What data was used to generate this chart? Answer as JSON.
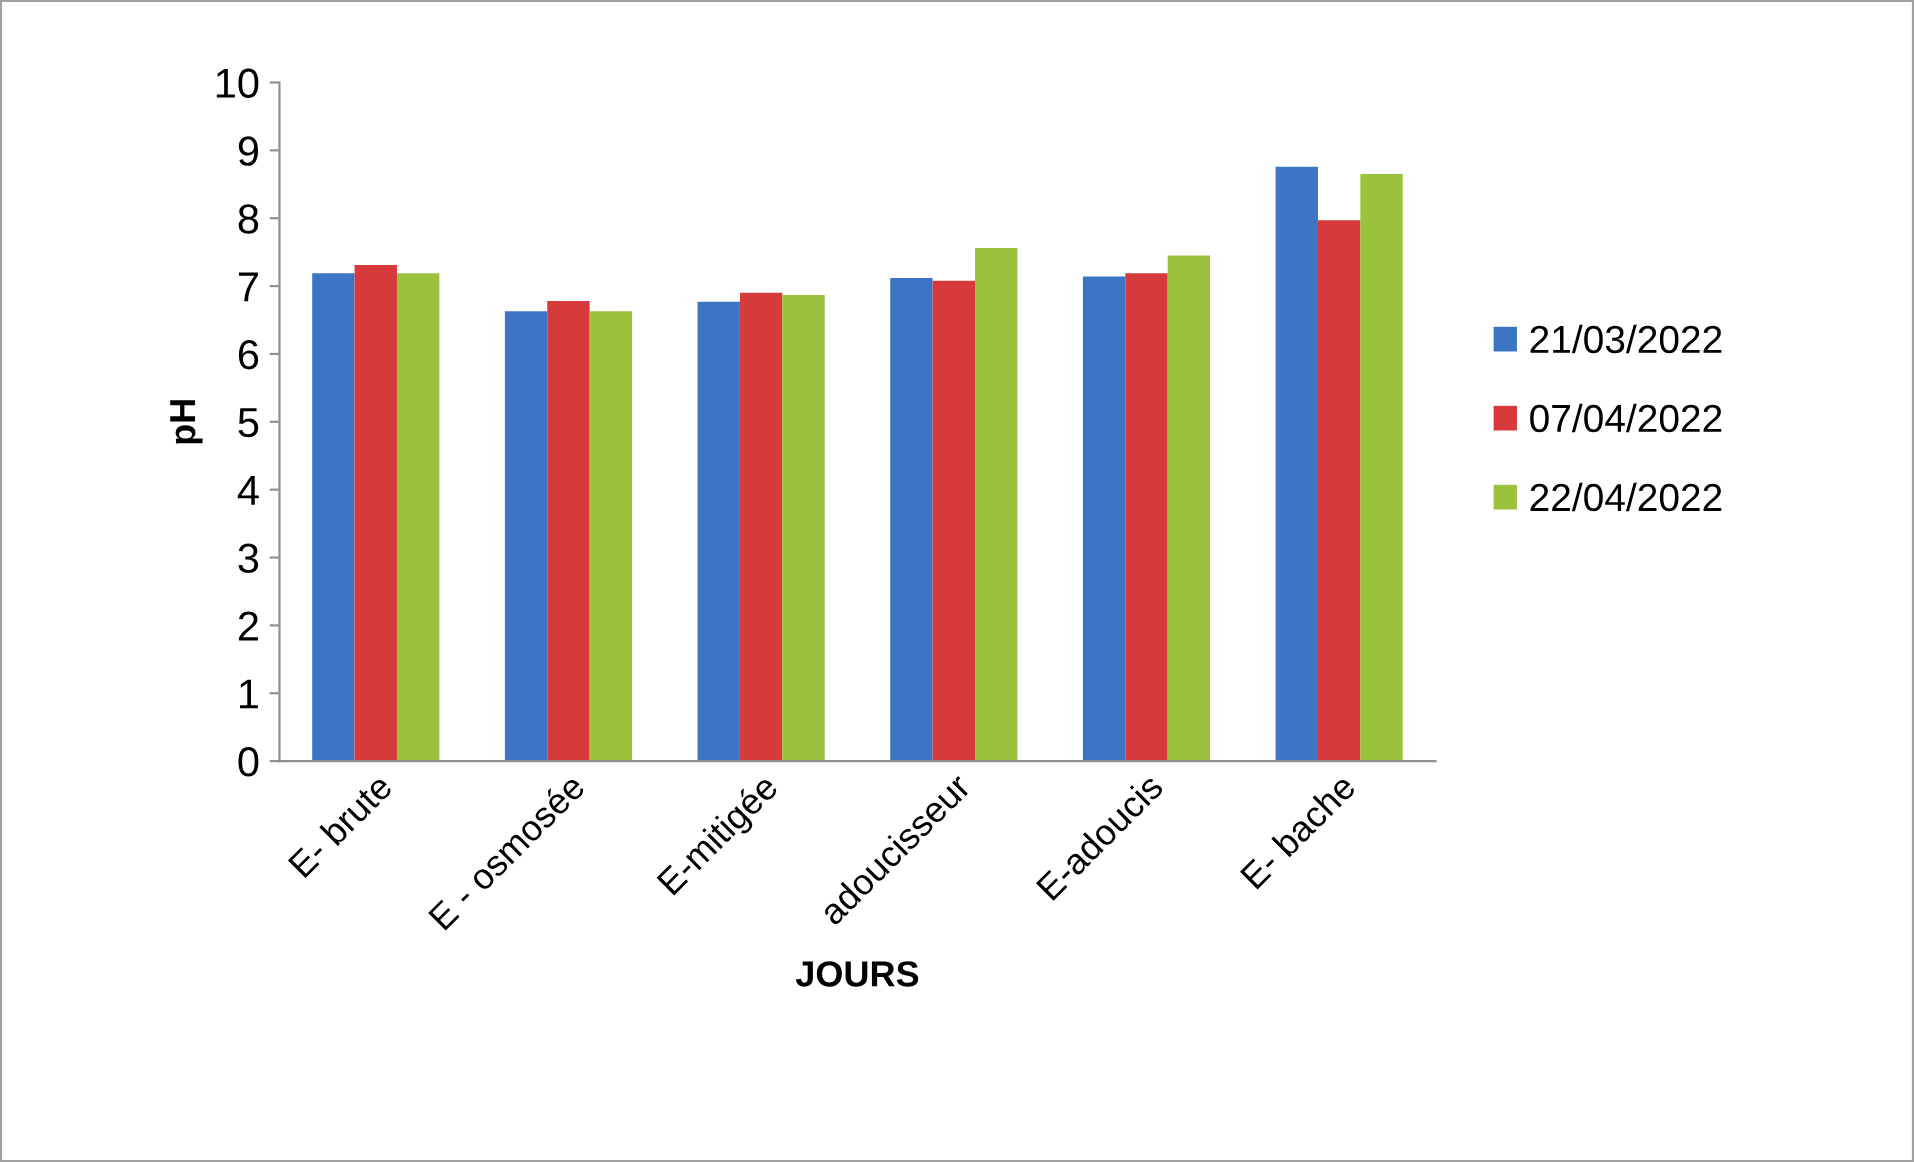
{
  "chart_data": {
    "type": "bar",
    "xlabel": "JOURS",
    "ylabel": "pH",
    "categories": [
      "E- brute",
      "E - osmosée",
      "E-mitigée",
      "adoucisseur",
      "E-adoucis",
      "E- bache"
    ],
    "series": [
      {
        "name": "21/03/2022",
        "color": "#3b75c4",
        "values": [
          7.19,
          6.63,
          6.77,
          7.12,
          7.14,
          8.76
        ]
      },
      {
        "name": "07/04/2022",
        "color": "#d63a3a",
        "values": [
          7.31,
          6.78,
          6.9,
          7.08,
          7.19,
          7.97
        ]
      },
      {
        "name": "22/04/2022",
        "color": "#9bc23c",
        "values": [
          7.19,
          6.63,
          6.87,
          7.56,
          7.45,
          8.65
        ]
      }
    ],
    "ylim": [
      0,
      10
    ],
    "yticks": [
      0,
      1,
      2,
      3,
      4,
      5,
      6,
      7,
      8,
      9,
      10
    ],
    "grid": false,
    "legend": "right"
  }
}
